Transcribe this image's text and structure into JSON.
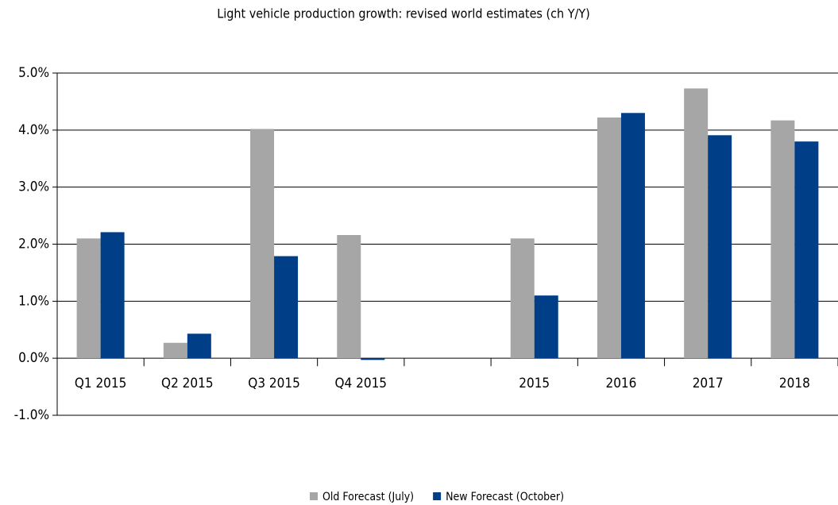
{
  "chart_data": {
    "type": "bar",
    "title": "Light vehicle production growth: revised world estimates (ch Y/Y)",
    "categories": [
      "Q1 2015",
      "Q2 2015",
      "Q3 2015",
      "Q4 2015",
      null,
      "2015",
      "2016",
      "2017",
      "2018"
    ],
    "series": [
      {
        "name": "Old Forecast (July)",
        "color": "#a6a6a6",
        "values": [
          2.1,
          0.27,
          4.02,
          2.16,
          null,
          2.1,
          4.22,
          4.73,
          4.17
        ]
      },
      {
        "name": "New Forecast (October)",
        "color": "#003f87",
        "values": [
          2.21,
          0.43,
          1.79,
          -0.03,
          null,
          1.1,
          4.3,
          3.91,
          3.8
        ]
      }
    ],
    "ylim": [
      -1,
      5
    ],
    "yticks": [
      {
        "value": -1,
        "label": "-1.0%"
      },
      {
        "value": 0,
        "label": "0.0%"
      },
      {
        "value": 1,
        "label": "1.0%"
      },
      {
        "value": 2,
        "label": "2.0%"
      },
      {
        "value": 3,
        "label": "3.0%"
      },
      {
        "value": 4,
        "label": "4.0%"
      },
      {
        "value": 5,
        "label": "5.0%"
      }
    ],
    "grid": true,
    "legend": "bottom"
  }
}
